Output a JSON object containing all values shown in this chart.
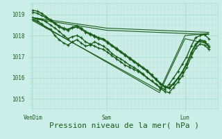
{
  "bg_color": "#cceee8",
  "grid_color_major": "#aaddcc",
  "grid_color_minor": "#bbddd4",
  "line_color": "#1a5c1a",
  "xlabel": "Pression niveau de la mer( hPa )",
  "xlabel_fontsize": 8,
  "xtick_labels": [
    "VenDim",
    "Sam",
    "Lun"
  ],
  "xtick_positions": [
    0.0,
    0.42,
    0.865
  ],
  "ytick_labels": [
    "1015",
    "1016",
    "1017",
    "1018",
    "1019"
  ],
  "ytick_values": [
    1015,
    1016,
    1017,
    1018,
    1019
  ],
  "ylim": [
    1014.55,
    1019.55
  ],
  "xlim": [
    -0.01,
    1.05
  ],
  "series": [
    {
      "x": [
        0.0,
        0.025,
        0.05,
        0.075,
        0.1,
        0.125,
        0.15,
        0.175,
        0.2,
        0.225,
        0.25,
        0.275,
        0.3,
        0.325,
        0.35,
        0.375,
        0.4,
        0.425,
        0.45,
        0.475,
        0.5,
        0.525,
        0.55,
        0.575,
        0.6,
        0.625,
        0.65,
        0.675,
        0.7,
        0.725,
        0.75,
        0.775,
        0.8,
        0.825,
        0.85,
        0.875,
        0.9,
        0.925,
        0.95,
        0.975,
        1.0
      ],
      "y": [
        1018.75,
        1018.7,
        1018.55,
        1018.4,
        1018.3,
        1018.0,
        1017.8,
        1017.65,
        1017.55,
        1017.7,
        1017.8,
        1017.65,
        1017.5,
        1017.55,
        1017.7,
        1017.6,
        1017.5,
        1017.35,
        1017.15,
        1017.0,
        1016.9,
        1016.75,
        1016.6,
        1016.5,
        1016.35,
        1016.2,
        1016.0,
        1015.85,
        1015.7,
        1015.5,
        1015.35,
        1015.3,
        1015.55,
        1015.8,
        1016.1,
        1016.5,
        1017.0,
        1017.4,
        1017.6,
        1017.55,
        1017.35
      ],
      "marker": true,
      "linewidth": 1.0
    },
    {
      "x": [
        0.0,
        0.025,
        0.05,
        0.075,
        0.1,
        0.125,
        0.15,
        0.175,
        0.2,
        0.225,
        0.25,
        0.275,
        0.3,
        0.325,
        0.35,
        0.375,
        0.4,
        0.425,
        0.45,
        0.475,
        0.5,
        0.525,
        0.55,
        0.575,
        0.6,
        0.625,
        0.65,
        0.675,
        0.7,
        0.725,
        0.75,
        0.775,
        0.8,
        0.825,
        0.85,
        0.875,
        0.9,
        0.925,
        0.95,
        0.975,
        1.0
      ],
      "y": [
        1018.85,
        1018.8,
        1018.75,
        1018.65,
        1018.5,
        1018.35,
        1018.2,
        1018.0,
        1017.85,
        1017.95,
        1018.0,
        1017.9,
        1017.7,
        1017.6,
        1017.5,
        1017.4,
        1017.35,
        1017.2,
        1017.05,
        1016.9,
        1016.75,
        1016.6,
        1016.5,
        1016.4,
        1016.3,
        1016.15,
        1016.0,
        1015.85,
        1015.7,
        1015.55,
        1015.45,
        1015.7,
        1016.0,
        1016.3,
        1016.65,
        1017.0,
        1017.5,
        1017.9,
        1018.0,
        1018.05,
        1017.85
      ],
      "marker": true,
      "linewidth": 1.0
    },
    {
      "x": [
        0.0,
        0.42,
        1.0
      ],
      "y": [
        1018.85,
        1018.35,
        1018.15
      ],
      "marker": false,
      "linewidth": 0.8
    },
    {
      "x": [
        0.0,
        0.42,
        1.0
      ],
      "y": [
        1018.8,
        1018.25,
        1018.05
      ],
      "marker": false,
      "linewidth": 0.8
    },
    {
      "x": [
        0.0,
        0.72,
        0.865,
        1.0
      ],
      "y": [
        1018.7,
        1015.4,
        1018.0,
        1018.1
      ],
      "marker": false,
      "linewidth": 0.8
    },
    {
      "x": [
        0.0,
        0.72,
        0.865,
        1.0
      ],
      "y": [
        1018.75,
        1015.3,
        1017.85,
        1017.6
      ],
      "marker": false,
      "linewidth": 0.8
    },
    {
      "x": [
        0.0,
        0.025,
        0.05,
        0.075,
        0.1,
        0.125,
        0.15,
        0.175,
        0.2,
        0.225,
        0.25,
        0.275,
        0.3,
        0.325,
        0.35,
        0.375,
        0.4,
        0.425,
        0.45,
        0.475,
        0.5,
        0.525,
        0.55,
        0.575,
        0.6,
        0.625,
        0.65,
        0.675,
        0.7,
        0.725,
        0.75,
        0.775,
        0.8,
        0.825,
        0.85,
        0.875,
        0.9,
        0.925,
        0.95,
        0.975,
        1.0
      ],
      "y": [
        1019.1,
        1019.05,
        1018.95,
        1018.85,
        1018.7,
        1018.55,
        1018.4,
        1018.3,
        1018.25,
        1018.35,
        1018.4,
        1018.3,
        1018.15,
        1018.05,
        1017.95,
        1017.85,
        1017.8,
        1017.65,
        1017.5,
        1017.35,
        1017.2,
        1017.05,
        1016.9,
        1016.75,
        1016.6,
        1016.45,
        1016.3,
        1016.1,
        1015.9,
        1015.7,
        1015.55,
        1015.5,
        1015.7,
        1015.95,
        1016.25,
        1016.65,
        1017.15,
        1017.55,
        1017.75,
        1017.7,
        1017.45
      ],
      "marker": true,
      "linewidth": 1.0
    },
    {
      "x": [
        0.0,
        0.025,
        0.05,
        0.075,
        0.1,
        0.125,
        0.15,
        0.175,
        0.2,
        0.225,
        0.25,
        0.275,
        0.3,
        0.325,
        0.35,
        0.375,
        0.4,
        0.425,
        0.45,
        0.475,
        0.5,
        0.525,
        0.55,
        0.575,
        0.6,
        0.625,
        0.65,
        0.675,
        0.7,
        0.725,
        0.75,
        0.775,
        0.8,
        0.825,
        0.85,
        0.875,
        0.9,
        0.925,
        0.95,
        0.975,
        1.0
      ],
      "y": [
        1019.2,
        1019.15,
        1019.05,
        1018.9,
        1018.75,
        1018.6,
        1018.45,
        1018.35,
        1018.3,
        1018.4,
        1018.45,
        1018.35,
        1018.2,
        1018.1,
        1018.0,
        1017.9,
        1017.85,
        1017.7,
        1017.55,
        1017.4,
        1017.25,
        1017.1,
        1016.95,
        1016.8,
        1016.65,
        1016.5,
        1016.35,
        1016.15,
        1015.95,
        1015.75,
        1015.6,
        1015.55,
        1015.75,
        1016.0,
        1016.3,
        1016.7,
        1017.2,
        1017.6,
        1017.8,
        1017.75,
        1017.5
      ],
      "marker": true,
      "linewidth": 1.0
    }
  ]
}
